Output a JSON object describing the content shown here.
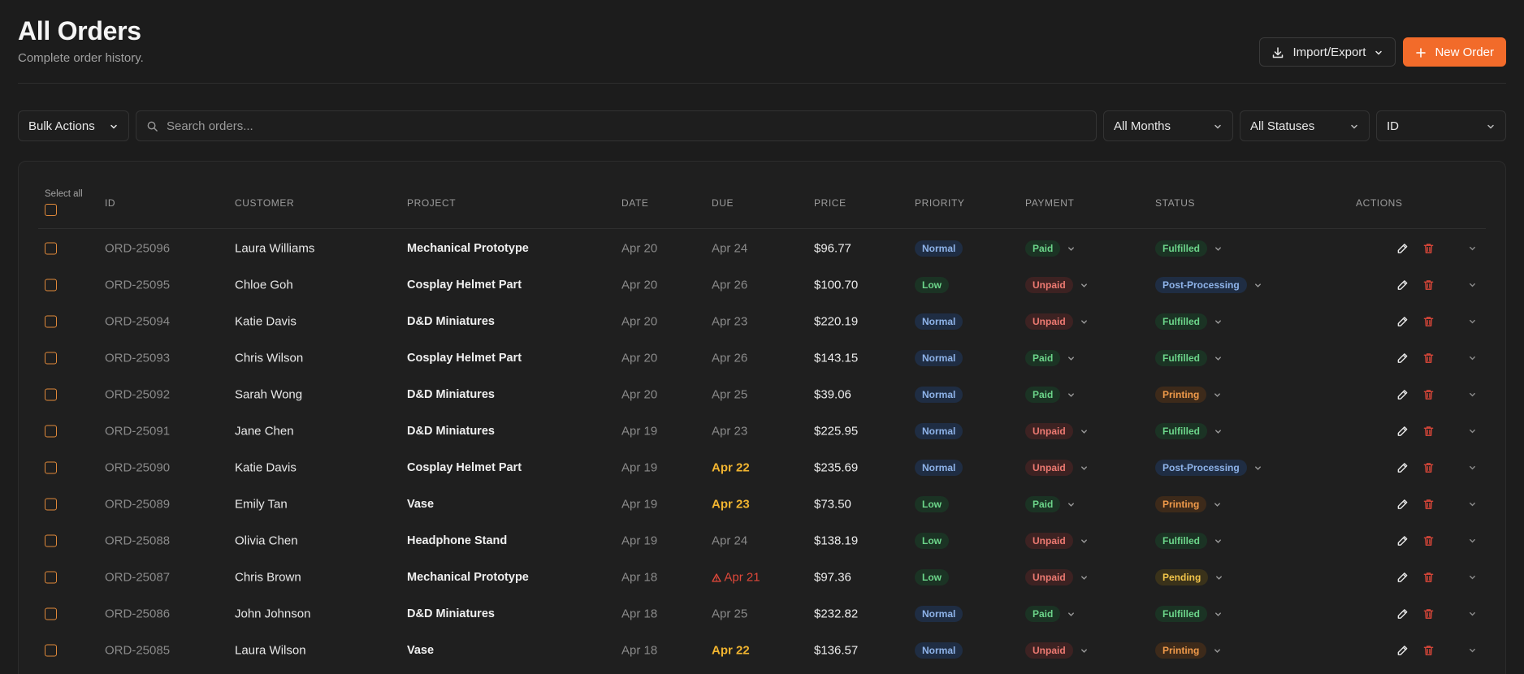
{
  "header": {
    "title": "All Orders",
    "subtitle": "Complete order history.",
    "import_export_label": "Import/Export",
    "new_order_label": "New Order"
  },
  "toolbar": {
    "bulk_actions_label": "Bulk Actions",
    "search_placeholder": "Search orders...",
    "months_filter": "All Months",
    "status_filter": "All Statuses",
    "sort_filter": "ID"
  },
  "table": {
    "select_all_label": "Select all",
    "columns": {
      "id": "ID",
      "customer": "CUSTOMER",
      "project": "PROJECT",
      "date": "DATE",
      "due": "DUE",
      "price": "PRICE",
      "priority": "PRIORITY",
      "payment": "PAYMENT",
      "status": "STATUS",
      "actions": "ACTIONS"
    },
    "rows": [
      {
        "id": "ORD-25096",
        "customer": "Laura Williams",
        "project": "Mechanical Prototype",
        "date": "Apr 20",
        "due": "Apr 24",
        "due_state": "normal",
        "price": "$96.77",
        "priority": "Normal",
        "payment": "Paid",
        "status": "Fulfilled"
      },
      {
        "id": "ORD-25095",
        "customer": "Chloe Goh",
        "project": "Cosplay Helmet Part",
        "date": "Apr 20",
        "due": "Apr 26",
        "due_state": "normal",
        "price": "$100.70",
        "priority": "Low",
        "payment": "Unpaid",
        "status": "Post-Processing"
      },
      {
        "id": "ORD-25094",
        "customer": "Katie Davis",
        "project": "D&D Miniatures",
        "date": "Apr 20",
        "due": "Apr 23",
        "due_state": "normal",
        "price": "$220.19",
        "priority": "Normal",
        "payment": "Unpaid",
        "status": "Fulfilled"
      },
      {
        "id": "ORD-25093",
        "customer": "Chris Wilson",
        "project": "Cosplay Helmet Part",
        "date": "Apr 20",
        "due": "Apr 26",
        "due_state": "normal",
        "price": "$143.15",
        "priority": "Normal",
        "payment": "Paid",
        "status": "Fulfilled"
      },
      {
        "id": "ORD-25092",
        "customer": "Sarah Wong",
        "project": "D&D Miniatures",
        "date": "Apr 20",
        "due": "Apr 25",
        "due_state": "normal",
        "price": "$39.06",
        "priority": "Normal",
        "payment": "Paid",
        "status": "Printing"
      },
      {
        "id": "ORD-25091",
        "customer": "Jane Chen",
        "project": "D&D Miniatures",
        "date": "Apr 19",
        "due": "Apr 23",
        "due_state": "normal",
        "price": "$225.95",
        "priority": "Normal",
        "payment": "Unpaid",
        "status": "Fulfilled"
      },
      {
        "id": "ORD-25090",
        "customer": "Katie Davis",
        "project": "Cosplay Helmet Part",
        "date": "Apr 19",
        "due": "Apr 22",
        "due_state": "soon",
        "price": "$235.69",
        "priority": "Normal",
        "payment": "Unpaid",
        "status": "Post-Processing"
      },
      {
        "id": "ORD-25089",
        "customer": "Emily Tan",
        "project": "Vase",
        "date": "Apr 19",
        "due": "Apr 23",
        "due_state": "soon",
        "price": "$73.50",
        "priority": "Low",
        "payment": "Paid",
        "status": "Printing"
      },
      {
        "id": "ORD-25088",
        "customer": "Olivia Chen",
        "project": "Headphone Stand",
        "date": "Apr 19",
        "due": "Apr 24",
        "due_state": "normal",
        "price": "$138.19",
        "priority": "Low",
        "payment": "Unpaid",
        "status": "Fulfilled"
      },
      {
        "id": "ORD-25087",
        "customer": "Chris Brown",
        "project": "Mechanical Prototype",
        "date": "Apr 18",
        "due": "Apr 21",
        "due_state": "overdue",
        "price": "$97.36",
        "priority": "Low",
        "payment": "Unpaid",
        "status": "Pending"
      },
      {
        "id": "ORD-25086",
        "customer": "John Johnson",
        "project": "D&D Miniatures",
        "date": "Apr 18",
        "due": "Apr 25",
        "due_state": "normal",
        "price": "$232.82",
        "priority": "Normal",
        "payment": "Paid",
        "status": "Fulfilled"
      },
      {
        "id": "ORD-25085",
        "customer": "Laura Wilson",
        "project": "Vase",
        "date": "Apr 18",
        "due": "Apr 22",
        "due_state": "soon",
        "price": "$136.57",
        "priority": "Normal",
        "payment": "Unpaid",
        "status": "Printing"
      }
    ]
  },
  "colors": {
    "accent": "#f26b2a",
    "checkbox": "#e0893a",
    "due_soon": "#f2b530",
    "due_overdue": "#e0483a",
    "priority": {
      "Normal": {
        "fg": "#8fb4ea",
        "bg": "#1f2d43"
      },
      "Low": {
        "fg": "#6cd58a",
        "bg": "#1b3324"
      }
    },
    "payment": {
      "Paid": {
        "fg": "#6cd58a",
        "bg": "#1b3324"
      },
      "Unpaid": {
        "fg": "#ee7a72",
        "bg": "#3d2222"
      }
    },
    "status": {
      "Fulfilled": {
        "fg": "#6cd58a",
        "bg": "#1b3324"
      },
      "Post-Processing": {
        "fg": "#8fb4ea",
        "bg": "#1f2d43"
      },
      "Printing": {
        "fg": "#f09a4a",
        "bg": "#3d2a1a"
      },
      "Pending": {
        "fg": "#f2c54a",
        "bg": "#3a321a"
      }
    }
  }
}
